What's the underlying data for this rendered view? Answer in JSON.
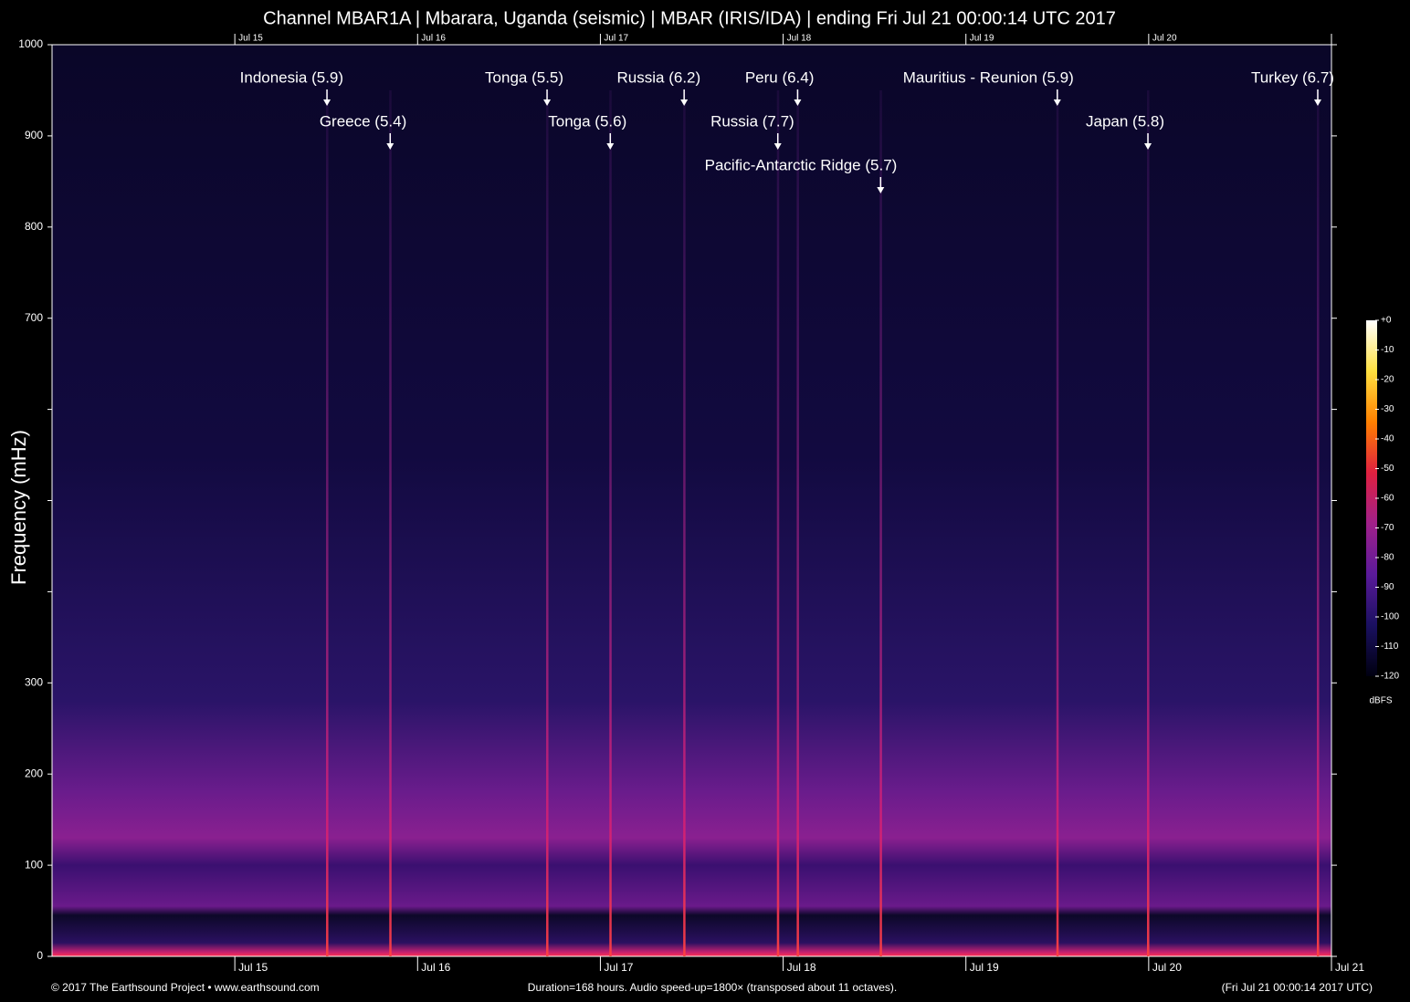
{
  "chart_data": {
    "type": "spectrogram",
    "title": "Channel MBAR1A | Mbarara, Uganda (seismic) | MBAR (IRIS/IDA) | ending Fri Jul 21 00:00:14 UTC 2017",
    "ylabel": "Frequency (mHz)",
    "xlim": [
      0,
      168
    ],
    "xticks": [
      {
        "value": 24,
        "label": "Jul 15"
      },
      {
        "value": 48,
        "label": "Jul 16"
      },
      {
        "value": 72,
        "label": "Jul 17"
      },
      {
        "value": 96,
        "label": "Jul 18"
      },
      {
        "value": 120,
        "label": "Jul 19"
      },
      {
        "value": 144,
        "label": "Jul 20"
      },
      {
        "value": 168,
        "label": "Jul 21"
      }
    ],
    "ylim": [
      0,
      1000
    ],
    "yticks": [
      0,
      100,
      200,
      300,
      {
        "value": 400,
        "label": null
      },
      {
        "value": 500,
        "label": null
      },
      {
        "value": 600,
        "label": null
      },
      700,
      800,
      900,
      1000
    ],
    "events": [
      {
        "label": "Indonesia (5.9)",
        "x": 36.1
      },
      {
        "label": "Greece (5.4)",
        "x": 44.4
      },
      {
        "label": "Tonga (5.5)",
        "x": 65.0
      },
      {
        "label": "Tonga (5.6)",
        "x": 73.3
      },
      {
        "label": "Russia (6.2)",
        "x": 83.0
      },
      {
        "label": "Russia (7.7)",
        "x": 95.3
      },
      {
        "label": "Peru (6.4)",
        "x": 97.9
      },
      {
        "label": "Pacific-Antarctic Ridge (5.7)",
        "x": 108.8
      },
      {
        "label": "Mauritius - Reunion (5.9)",
        "x": 132.0
      },
      {
        "label": "Japan (5.8)",
        "x": 143.9
      },
      {
        "label": "Turkey (6.7)",
        "x": 166.2
      }
    ],
    "colorbar": {
      "label": "dBFS",
      "clim": [
        -120,
        0
      ],
      "colors": [
        "#000010",
        "#1a1060",
        "#5a1a9a",
        "#a0208a",
        "#e02040",
        "#ff8000",
        "#ffe040",
        "#ffffff"
      ],
      "cticks": [
        {
          "value": 0,
          "label": "+0"
        },
        -10,
        -20,
        -30,
        -40,
        -50,
        -60,
        -70,
        -80,
        -90,
        -100,
        -110,
        -120
      ]
    },
    "footer_left": "© 2017 The Earthsound Project • www.earthsound.com",
    "footer_center": "Duration=168 hours. Audio speed-up=1800× (transposed about 11 octaves).",
    "footer_right": "(Fri Jul 21 00:00:14 2017 UTC)"
  }
}
